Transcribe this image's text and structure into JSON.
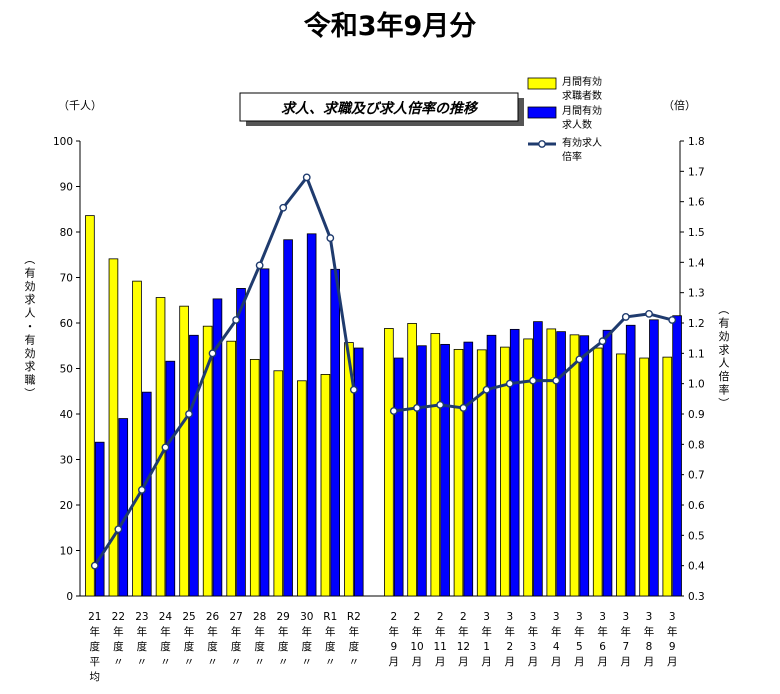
{
  "page": {
    "title": "令和3年9月分"
  },
  "chart_data": {
    "type": "bar",
    "title": "求人、求職及び求人倍率の推移",
    "left_unit": "（千人）",
    "right_unit": "（倍）",
    "ylabel_left": "（有効求人・有効求職）",
    "ylabel_right": "（有効求人倍率）",
    "ylim_left": [
      0,
      100
    ],
    "ylim_right": [
      0.3,
      1.8
    ],
    "yticks_left": [
      "0",
      "10",
      "20",
      "30",
      "40",
      "50",
      "60",
      "70",
      "80",
      "90",
      "100"
    ],
    "yticks_right": [
      "0.3",
      "0.4",
      "0.5",
      "0.6",
      "0.7",
      "0.8",
      "0.9",
      "1.0",
      "1.1",
      "1.2",
      "1.3",
      "1.4",
      "1.5",
      "1.6",
      "1.7",
      "1.8"
    ],
    "legend_position": "top-right",
    "colors": {
      "seekers": "#ffff00",
      "openings": "#0000ff",
      "ratio_line": "#1f3b6e"
    },
    "groups": [
      {
        "categories": [
          "21年度平均",
          "22年度〃",
          "23年度〃",
          "24年度〃",
          "25年度〃",
          "26年度〃",
          "27年度〃",
          "28年度〃",
          "29年度〃",
          "30年度〃",
          "R1年度〃",
          "R2年度〃"
        ],
        "tick_labels": [
          [
            "21",
            "年",
            "度",
            "平",
            "均"
          ],
          [
            "22",
            "年",
            "度",
            "〃"
          ],
          [
            "23",
            "年",
            "度",
            "〃"
          ],
          [
            "24",
            "年",
            "度",
            "〃"
          ],
          [
            "25",
            "年",
            "度",
            "〃"
          ],
          [
            "26",
            "年",
            "度",
            "〃"
          ],
          [
            "27",
            "年",
            "度",
            "〃"
          ],
          [
            "28",
            "年",
            "度",
            "〃"
          ],
          [
            "29",
            "年",
            "度",
            "〃"
          ],
          [
            "30",
            "年",
            "度",
            "〃"
          ],
          [
            "R1",
            "年",
            "度",
            "〃"
          ],
          [
            "R2",
            "年",
            "度",
            "〃"
          ]
        ],
        "seekers": [
          83.6,
          74.1,
          69.2,
          65.6,
          63.7,
          59.3,
          56.0,
          52.0,
          49.5,
          47.3,
          48.7,
          55.7
        ],
        "openings": [
          33.8,
          39.0,
          44.8,
          51.6,
          57.3,
          65.3,
          67.6,
          71.9,
          78.3,
          79.6,
          71.8,
          54.5
        ],
        "ratio": [
          0.4,
          0.52,
          0.65,
          0.79,
          0.9,
          1.1,
          1.21,
          1.39,
          1.58,
          1.68,
          1.48,
          0.98
        ]
      },
      {
        "categories": [
          "2年9月",
          "2年10月",
          "2年11月",
          "2年12月",
          "3年1月",
          "3年2月",
          "3年3月",
          "3年4月",
          "3年5月",
          "3年6月",
          "3年7月",
          "3年8月",
          "3年9月"
        ],
        "tick_labels": [
          [
            "2",
            "年",
            "9",
            "月"
          ],
          [
            "2",
            "年",
            "10",
            "月"
          ],
          [
            "2",
            "年",
            "11",
            "月"
          ],
          [
            "2",
            "年",
            "12",
            "月"
          ],
          [
            "3",
            "年",
            "1",
            "月"
          ],
          [
            "3",
            "年",
            "2",
            "月"
          ],
          [
            "3",
            "年",
            "3",
            "月"
          ],
          [
            "3",
            "年",
            "4",
            "月"
          ],
          [
            "3",
            "年",
            "5",
            "月"
          ],
          [
            "3",
            "年",
            "6",
            "月"
          ],
          [
            "3",
            "年",
            "7",
            "月"
          ],
          [
            "3",
            "年",
            "8",
            "月"
          ],
          [
            "3",
            "年",
            "9",
            "月"
          ]
        ],
        "seekers": [
          58.8,
          59.9,
          57.7,
          54.2,
          54.1,
          54.7,
          56.5,
          58.7,
          57.4,
          54.5,
          53.2,
          52.3,
          52.5
        ],
        "openings": [
          52.3,
          55.0,
          55.3,
          55.8,
          57.3,
          58.6,
          60.3,
          58.1,
          57.2,
          58.4,
          59.5,
          60.7,
          61.6
        ],
        "ratio": [
          0.91,
          0.92,
          0.93,
          0.92,
          0.98,
          1.0,
          1.01,
          1.01,
          1.08,
          1.14,
          1.22,
          1.23,
          1.21
        ]
      }
    ],
    "series": [
      {
        "name": "月間有効求職者数",
        "legend_lines": [
          "月間有効",
          "求職者数"
        ],
        "key": "seekers",
        "type": "bar"
      },
      {
        "name": "月間有効求人数",
        "legend_lines": [
          "月間有効",
          "求人数"
        ],
        "key": "openings",
        "type": "bar"
      },
      {
        "name": "有効求人倍率",
        "legend_lines": [
          "有効求人",
          "倍率"
        ],
        "key": "ratio",
        "type": "line"
      }
    ]
  }
}
